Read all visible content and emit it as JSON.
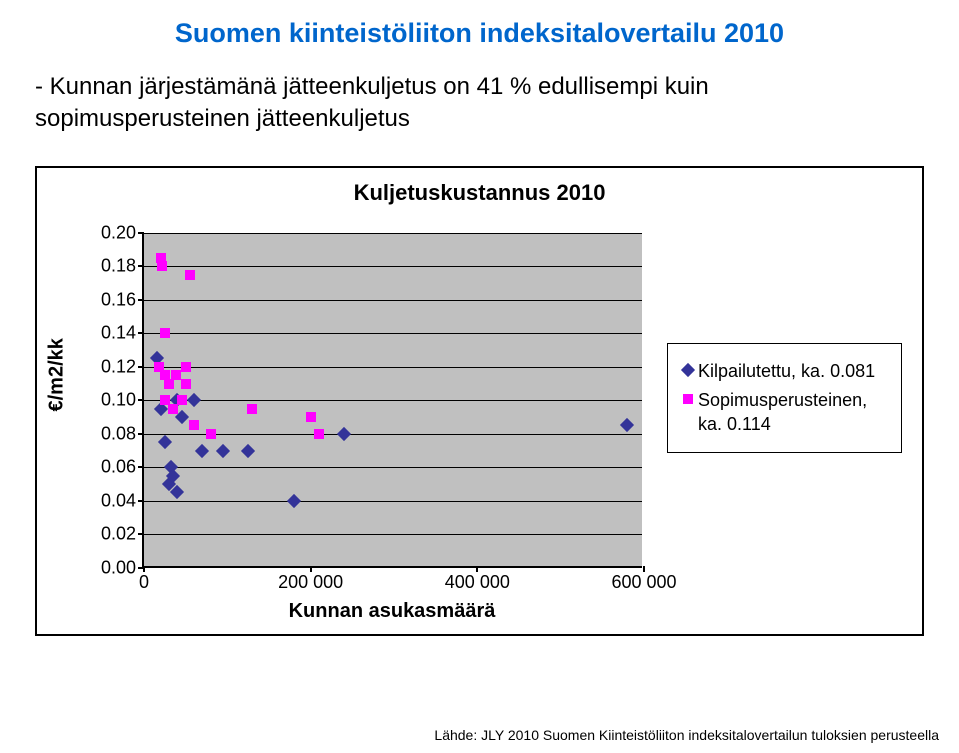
{
  "page_title": "Suomen kiinteistöliiton indeksitalovertailu 2010",
  "subtitle": "- Kunnan järjestämänä jätteenkuljetus on 41 % edullisempi kuin sopimusperusteinen jätteenkuljetus",
  "source": "Lähde: JLY 2010 Suomen Kiinteistöliiton indeksitalovertailun tuloksien perusteella",
  "chart": {
    "type": "scatter",
    "title": "Kuljetuskustannus 2010",
    "xlabel": "Kunnan asukasmäärä",
    "ylabel": "€/m2/kk",
    "background_color": "#c0c0c0",
    "grid_color": "#000000",
    "xlim": [
      0,
      600000
    ],
    "ylim": [
      0,
      0.2
    ],
    "xticks": [
      0,
      200000,
      400000,
      600000
    ],
    "xtick_labels": [
      "0",
      "200 000",
      "400 000",
      "600 000"
    ],
    "yticks": [
      0.0,
      0.02,
      0.04,
      0.06,
      0.08,
      0.1,
      0.12,
      0.14,
      0.16,
      0.18,
      0.2
    ],
    "ytick_labels": [
      "0.00",
      "0.02",
      "0.04",
      "0.06",
      "0.08",
      "0.10",
      "0.12",
      "0.14",
      "0.16",
      "0.18",
      "0.20"
    ],
    "series": [
      {
        "name": "Kilpailutettu, ka. 0.081",
        "marker": "diamond",
        "color": "#333399",
        "points": [
          [
            16000,
            0.125
          ],
          [
            20000,
            0.095
          ],
          [
            25000,
            0.075
          ],
          [
            30000,
            0.05
          ],
          [
            32000,
            0.06
          ],
          [
            35000,
            0.055
          ],
          [
            40000,
            0.1
          ],
          [
            40000,
            0.045
          ],
          [
            45000,
            0.09
          ],
          [
            60000,
            0.1
          ],
          [
            70000,
            0.07
          ],
          [
            95000,
            0.07
          ],
          [
            125000,
            0.07
          ],
          [
            180000,
            0.04
          ],
          [
            240000,
            0.08
          ],
          [
            580000,
            0.085
          ]
        ]
      },
      {
        "name": "Sopimusperusteinen, ka. 0.114",
        "marker": "square",
        "color": "#ff00ff",
        "points": [
          [
            20000,
            0.185
          ],
          [
            22000,
            0.18
          ],
          [
            55000,
            0.175
          ],
          [
            25000,
            0.14
          ],
          [
            18000,
            0.12
          ],
          [
            25000,
            0.115
          ],
          [
            30000,
            0.11
          ],
          [
            38000,
            0.115
          ],
          [
            50000,
            0.11
          ],
          [
            50000,
            0.12
          ],
          [
            25000,
            0.1
          ],
          [
            35000,
            0.095
          ],
          [
            45000,
            0.1
          ],
          [
            60000,
            0.085
          ],
          [
            80000,
            0.08
          ],
          [
            130000,
            0.095
          ],
          [
            200000,
            0.09
          ],
          [
            210000,
            0.08
          ]
        ]
      }
    ]
  }
}
